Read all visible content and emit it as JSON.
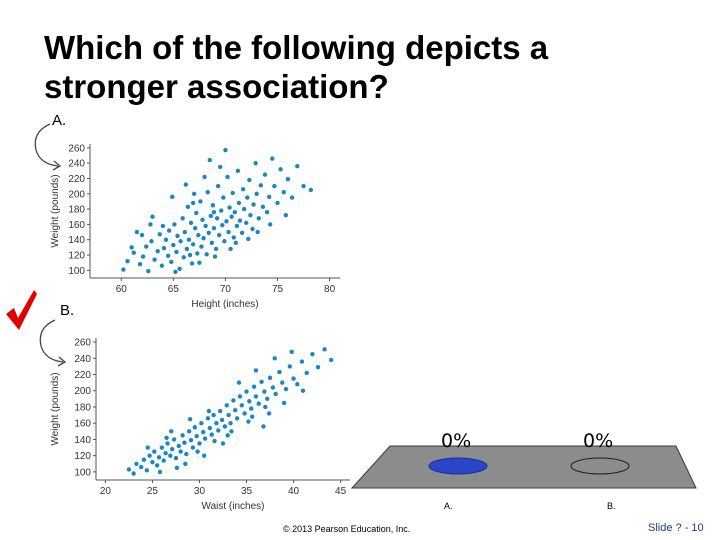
{
  "slide": {
    "question": "Which of the following depicts a stronger association?",
    "copyright": "© 2013 Pearson Education, Inc.",
    "slide_number": "Slide ? - 10",
    "correct_option": "B."
  },
  "options": [
    {
      "label": "A."
    },
    {
      "label": "B."
    }
  ],
  "chart_data": [
    {
      "type": "scatter",
      "title": "",
      "xlabel": "Height (inches)",
      "ylabel": "Weight (pounds)",
      "xlim": [
        57,
        81
      ],
      "ylim": [
        90,
        265
      ],
      "x_ticks": [
        60,
        65,
        70,
        75,
        80
      ],
      "y_ticks": [
        100,
        120,
        140,
        160,
        180,
        200,
        220,
        240,
        260
      ],
      "series": [
        {
          "color": "#1a87c1",
          "points": [
            [
              60.2,
              101
            ],
            [
              60.6,
              112
            ],
            [
              61.2,
              123
            ],
            [
              61.8,
              108
            ],
            [
              62.1,
              118
            ],
            [
              62.4,
              131
            ],
            [
              62.6,
              99
            ],
            [
              62.9,
              138
            ],
            [
              63.2,
              114
            ],
            [
              63.5,
              125
            ],
            [
              63.7,
              147
            ],
            [
              63.9,
              106
            ],
            [
              64.1,
              129
            ],
            [
              64.3,
              140
            ],
            [
              64.5,
              119
            ],
            [
              64.6,
              152
            ],
            [
              64.8,
              111
            ],
            [
              65.0,
              133
            ],
            [
              65.1,
              160
            ],
            [
              65.3,
              124
            ],
            [
              65.4,
              145
            ],
            [
              65.6,
              102
            ],
            [
              65.7,
              138
            ],
            [
              65.9,
              168
            ],
            [
              66.0,
              117
            ],
            [
              66.1,
              150
            ],
            [
              66.3,
              128
            ],
            [
              66.4,
              183
            ],
            [
              66.5,
              140
            ],
            [
              66.7,
              162
            ],
            [
              66.8,
              109
            ],
            [
              66.9,
              134
            ],
            [
              67.1,
              155
            ],
            [
              67.2,
              175
            ],
            [
              67.3,
              122
            ],
            [
              67.4,
              146
            ],
            [
              67.6,
              190
            ],
            [
              67.7,
              131
            ],
            [
              67.8,
              166
            ],
            [
              67.9,
              142
            ],
            [
              68.1,
              158
            ],
            [
              68.2,
              121
            ],
            [
              68.3,
              202
            ],
            [
              68.4,
              149
            ],
            [
              68.6,
              171
            ],
            [
              68.7,
              136
            ],
            [
              68.8,
              185
            ],
            [
              68.9,
              155
            ],
            [
              69.1,
              128
            ],
            [
              69.2,
              168
            ],
            [
              69.3,
              210
            ],
            [
              69.4,
              146
            ],
            [
              69.6,
              178
            ],
            [
              69.7,
              159
            ],
            [
              69.8,
              195
            ],
            [
              69.9,
              138
            ],
            [
              70.1,
              164
            ],
            [
              70.2,
              222
            ],
            [
              70.3,
              150
            ],
            [
              70.4,
              182
            ],
            [
              70.6,
              170
            ],
            [
              70.7,
              201
            ],
            [
              70.8,
              143
            ],
            [
              70.9,
              176
            ],
            [
              71.1,
              158
            ],
            [
              71.2,
              230
            ],
            [
              71.3,
              188
            ],
            [
              71.4,
              165
            ],
            [
              71.6,
              149
            ],
            [
              71.7,
              206
            ],
            [
              71.8,
              180
            ],
            [
              72.0,
              162
            ],
            [
              72.1,
              195
            ],
            [
              72.3,
              218
            ],
            [
              72.4,
              172
            ],
            [
              72.6,
              154
            ],
            [
              72.7,
              186
            ],
            [
              72.9,
              240
            ],
            [
              73.0,
              200
            ],
            [
              73.2,
              168
            ],
            [
              73.4,
              211
            ],
            [
              73.6,
              183
            ],
            [
              73.8,
              225
            ],
            [
              74.0,
              176
            ],
            [
              74.2,
              196
            ],
            [
              74.5,
              246
            ],
            [
              74.7,
              210
            ],
            [
              75.0,
              188
            ],
            [
              75.3,
              232
            ],
            [
              75.6,
              202
            ],
            [
              76.0,
              219
            ],
            [
              76.4,
              195
            ],
            [
              76.9,
              236
            ],
            [
              77.5,
              210
            ],
            [
              78.2,
              205
            ],
            [
              64.9,
              196
            ],
            [
              66.2,
              212
            ],
            [
              68.5,
              244
            ],
            [
              70.0,
              257
            ],
            [
              63.0,
              170
            ],
            [
              62.0,
              146
            ],
            [
              61.0,
              130
            ],
            [
              66.6,
              120
            ],
            [
              67.5,
              110
            ],
            [
              69.0,
              118
            ],
            [
              71.0,
              136
            ],
            [
              73.1,
              150
            ],
            [
              74.3,
              160
            ],
            [
              65.2,
              98
            ],
            [
              67.0,
              200
            ],
            [
              68.0,
              222
            ],
            [
              69.5,
              235
            ],
            [
              64.0,
              158
            ],
            [
              62.8,
              160
            ],
            [
              61.5,
              150
            ],
            [
              70.5,
              128
            ],
            [
              72.2,
              141
            ],
            [
              75.8,
              172
            ],
            [
              66.9,
              188
            ],
            [
              68.9,
              176
            ]
          ]
        }
      ]
    },
    {
      "type": "scatter",
      "title": "",
      "xlabel": "Waist (inches)",
      "ylabel": "Weight (pounds)",
      "xlim": [
        19,
        46
      ],
      "ylim": [
        90,
        265
      ],
      "x_ticks": [
        20,
        25,
        30,
        35,
        40,
        45
      ],
      "y_ticks": [
        100,
        120,
        140,
        160,
        180,
        200,
        220,
        240,
        260
      ],
      "series": [
        {
          "color": "#1a87c1",
          "points": [
            [
              22.5,
              103
            ],
            [
              23.0,
              98
            ],
            [
              23.3,
              110
            ],
            [
              23.8,
              106
            ],
            [
              24.1,
              115
            ],
            [
              24.4,
              102
            ],
            [
              24.7,
              120
            ],
            [
              25.0,
              112
            ],
            [
              25.2,
              125
            ],
            [
              25.5,
              108
            ],
            [
              25.7,
              118
            ],
            [
              26.0,
              130
            ],
            [
              26.2,
              114
            ],
            [
              26.4,
              123
            ],
            [
              26.6,
              135
            ],
            [
              26.9,
              120
            ],
            [
              27.1,
              128
            ],
            [
              27.3,
              140
            ],
            [
              27.5,
              117
            ],
            [
              27.8,
              132
            ],
            [
              28.0,
              125
            ],
            [
              28.2,
              145
            ],
            [
              28.4,
              136
            ],
            [
              28.6,
              122
            ],
            [
              28.9,
              150
            ],
            [
              29.1,
              139
            ],
            [
              29.3,
              130
            ],
            [
              29.5,
              155
            ],
            [
              29.7,
              144
            ],
            [
              30.0,
              135
            ],
            [
              30.2,
              160
            ],
            [
              30.4,
              149
            ],
            [
              30.6,
              141
            ],
            [
              30.9,
              166
            ],
            [
              31.1,
              154
            ],
            [
              31.3,
              146
            ],
            [
              31.5,
              170
            ],
            [
              31.8,
              160
            ],
            [
              32.0,
              151
            ],
            [
              32.2,
              175
            ],
            [
              32.4,
              164
            ],
            [
              32.7,
              156
            ],
            [
              32.9,
              182
            ],
            [
              33.1,
              170
            ],
            [
              33.3,
              160
            ],
            [
              33.6,
              188
            ],
            [
              33.8,
              176
            ],
            [
              34.0,
              166
            ],
            [
              34.3,
              193
            ],
            [
              34.5,
              182
            ],
            [
              34.8,
              172
            ],
            [
              35.0,
              199
            ],
            [
              35.3,
              187
            ],
            [
              35.5,
              178
            ],
            [
              35.8,
              205
            ],
            [
              36.0,
              193
            ],
            [
              36.3,
              184
            ],
            [
              36.6,
              211
            ],
            [
              36.9,
              199
            ],
            [
              37.2,
              190
            ],
            [
              37.5,
              216
            ],
            [
              37.8,
              204
            ],
            [
              38.1,
              196
            ],
            [
              38.5,
              223
            ],
            [
              38.8,
              210
            ],
            [
              39.2,
              202
            ],
            [
              39.6,
              230
            ],
            [
              40.0,
              215
            ],
            [
              40.4,
              208
            ],
            [
              40.9,
              236
            ],
            [
              41.4,
              222
            ],
            [
              42.0,
              245
            ],
            [
              42.6,
              229
            ],
            [
              43.3,
              251
            ],
            [
              44.0,
              238
            ],
            [
              33.0,
              145
            ],
            [
              31.0,
              175
            ],
            [
              29.0,
              165
            ],
            [
              27.0,
              150
            ],
            [
              35.2,
              162
            ],
            [
              37.0,
              180
            ],
            [
              38.0,
              240
            ],
            [
              36.0,
              225
            ],
            [
              28.5,
              110
            ],
            [
              30.5,
              120
            ],
            [
              32.5,
              135
            ],
            [
              26.5,
              142
            ],
            [
              24.5,
              130
            ],
            [
              34.2,
              210
            ],
            [
              39.0,
              185
            ],
            [
              41.0,
              200
            ],
            [
              25.8,
              100
            ],
            [
              27.6,
              105
            ],
            [
              29.8,
              125
            ],
            [
              31.6,
              138
            ],
            [
              33.4,
              150
            ],
            [
              35.6,
              168
            ],
            [
              37.4,
              172
            ],
            [
              36.8,
              156
            ],
            [
              39.8,
              248
            ]
          ]
        }
      ]
    }
  ],
  "responses": [
    {
      "label": "A.",
      "percent": "0%",
      "color": "#2a45c8"
    },
    {
      "label": "B.",
      "percent": "0%",
      "color": "#8a8a8a"
    }
  ]
}
